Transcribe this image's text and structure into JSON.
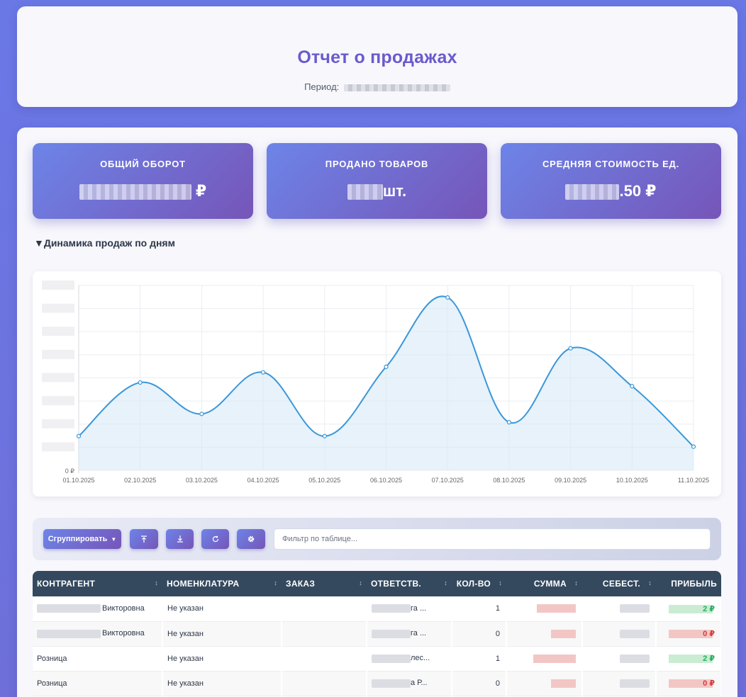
{
  "header": {
    "title": "Отчет о продажах",
    "period_label": "Период:"
  },
  "stats": [
    {
      "label": "ОБЩИЙ ОБОРОТ",
      "suffix": " ₽"
    },
    {
      "label": "ПРОДАНО ТОВАРОВ",
      "suffix": "шт."
    },
    {
      "label": "СРЕДНЯЯ СТОИМОСТЬ ЕД.",
      "suffix": ".50 ₽"
    }
  ],
  "section": {
    "title": "▼Динамика продаж по дням"
  },
  "chart_data": {
    "type": "area",
    "categories": [
      "01.10.2025",
      "02.10.2025",
      "03.10.2025",
      "04.10.2025",
      "05.10.2025",
      "06.10.2025",
      "07.10.2025",
      "08.10.2025",
      "09.10.2025",
      "10.10.2025",
      "11.10.2025"
    ],
    "values": [
      0.185,
      0.475,
      0.305,
      0.53,
      0.185,
      0.56,
      0.935,
      0.26,
      0.66,
      0.455,
      0.128
    ],
    "y_zero_label": "0 ₽",
    "ylim": [
      0,
      1
    ],
    "grid": true,
    "line_color": "#3b97d9",
    "fill_color": "#d7e9f7"
  },
  "toolbar": {
    "group_label": "Сгруппировать",
    "filter_placeholder": "Фильтр по таблице..."
  },
  "table": {
    "columns": [
      "КОНТРАГЕНТ",
      "НОМЕНКЛАТУРА",
      "ЗАКАЗ",
      "ОТВЕТСТВ.",
      "КОЛ-ВО",
      "СУММА",
      "СЕБЕСТ.",
      "ПРИБЫЛЬ"
    ],
    "rows": [
      {
        "client": "Викторовна",
        "nomenclature": "Не указан",
        "order": "",
        "resp": "га ...",
        "qty": "1",
        "profit": "2 ₽",
        "profit_sign": "pos"
      },
      {
        "client": "Викторовна",
        "nomenclature": "Не указан",
        "order": "",
        "resp": "га ...",
        "qty": "0",
        "profit": "0 ₽",
        "profit_sign": "neg"
      },
      {
        "client": "Розница",
        "nomenclature": "Не указан",
        "order": "",
        "resp": "лес...",
        "qty": "1",
        "profit": "2 ₽",
        "profit_sign": "pos"
      },
      {
        "client": "Розница",
        "nomenclature": "Не указан",
        "order": "",
        "resp": "а Р...",
        "qty": "0",
        "profit": "0 ₽",
        "profit_sign": "neg"
      }
    ]
  }
}
